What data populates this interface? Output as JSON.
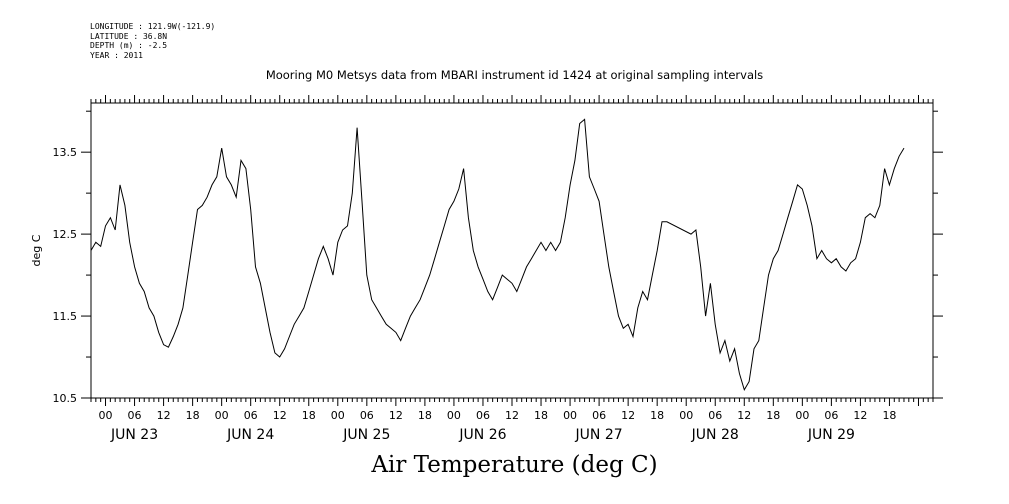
{
  "header": {
    "longitude": "LONGITUDE : 121.9W(-121.9)",
    "latitude": "LATITUDE : 36.8N",
    "depth": "DEPTH (m) : -2.5",
    "year": "YEAR : 2011",
    "title": "Mooring M0 Metsys data from MBARI instrument id 1424 at original sampling intervals",
    "variable": "Air Temperature (deg C)"
  },
  "chart_data": {
    "type": "line",
    "title": "Mooring M0 Metsys data from MBARI instrument id 1424 at original sampling intervals",
    "xlabel": "Air Temperature (deg C)",
    "ylabel": "deg C",
    "ylim": [
      10.5,
      14.1
    ],
    "xlim": [
      "2011-06-22 21:00",
      "2011-06-30 03:00"
    ],
    "y_ticks": [
      "10.5",
      "11.5",
      "12.5",
      "13.5"
    ],
    "hour_ticks": [
      "00",
      "06",
      "12",
      "18",
      "00",
      "06",
      "12",
      "18",
      "00",
      "06",
      "12",
      "18",
      "00",
      "06",
      "12",
      "18",
      "00",
      "06",
      "12",
      "18",
      "00",
      "06",
      "12",
      "18",
      "00",
      "06",
      "12",
      "18"
    ],
    "day_labels": [
      "JUN 23",
      "JUN 24",
      "JUN 25",
      "JUN 26",
      "JUN 27",
      "JUN 28",
      "JUN 29"
    ],
    "grid": false,
    "series": [
      {
        "color": "#000000",
        "points": [
          [
            "2011-06-22 21:00",
            12.3
          ],
          [
            "2011-06-22 22:00",
            12.4
          ],
          [
            "2011-06-22 23:00",
            12.35
          ],
          [
            "2011-06-23 00:00",
            12.6
          ],
          [
            "2011-06-23 01:00",
            12.7
          ],
          [
            "2011-06-23 02:00",
            12.55
          ],
          [
            "2011-06-23 03:00",
            13.1
          ],
          [
            "2011-06-23 04:00",
            12.85
          ],
          [
            "2011-06-23 05:00",
            12.4
          ],
          [
            "2011-06-23 06:00",
            12.1
          ],
          [
            "2011-06-23 07:00",
            11.9
          ],
          [
            "2011-06-23 08:00",
            11.8
          ],
          [
            "2011-06-23 09:00",
            11.6
          ],
          [
            "2011-06-23 10:00",
            11.5
          ],
          [
            "2011-06-23 11:00",
            11.3
          ],
          [
            "2011-06-23 12:00",
            11.15
          ],
          [
            "2011-06-23 13:00",
            11.12
          ],
          [
            "2011-06-23 14:00",
            11.25
          ],
          [
            "2011-06-23 15:00",
            11.4
          ],
          [
            "2011-06-23 16:00",
            11.6
          ],
          [
            "2011-06-23 17:00",
            12.0
          ],
          [
            "2011-06-23 18:00",
            12.4
          ],
          [
            "2011-06-23 19:00",
            12.8
          ],
          [
            "2011-06-23 20:00",
            12.85
          ],
          [
            "2011-06-23 21:00",
            12.95
          ],
          [
            "2011-06-23 22:00",
            13.1
          ],
          [
            "2011-06-23 23:00",
            13.2
          ],
          [
            "2011-06-24 00:00",
            13.55
          ],
          [
            "2011-06-24 01:00",
            13.2
          ],
          [
            "2011-06-24 02:00",
            13.1
          ],
          [
            "2011-06-24 03:00",
            12.95
          ],
          [
            "2011-06-24 04:00",
            13.4
          ],
          [
            "2011-06-24 05:00",
            13.3
          ],
          [
            "2011-06-24 06:00",
            12.8
          ],
          [
            "2011-06-24 07:00",
            12.1
          ],
          [
            "2011-06-24 08:00",
            11.9
          ],
          [
            "2011-06-24 09:00",
            11.6
          ],
          [
            "2011-06-24 10:00",
            11.3
          ],
          [
            "2011-06-24 11:00",
            11.05
          ],
          [
            "2011-06-24 12:00",
            11.0
          ],
          [
            "2011-06-24 13:00",
            11.1
          ],
          [
            "2011-06-24 14:00",
            11.25
          ],
          [
            "2011-06-24 15:00",
            11.4
          ],
          [
            "2011-06-24 16:00",
            11.5
          ],
          [
            "2011-06-24 17:00",
            11.6
          ],
          [
            "2011-06-24 18:00",
            11.8
          ],
          [
            "2011-06-24 19:00",
            12.0
          ],
          [
            "2011-06-24 20:00",
            12.2
          ],
          [
            "2011-06-24 21:00",
            12.35
          ],
          [
            "2011-06-24 22:00",
            12.2
          ],
          [
            "2011-06-24 23:00",
            12.0
          ],
          [
            "2011-06-25 00:00",
            12.4
          ],
          [
            "2011-06-25 01:00",
            12.55
          ],
          [
            "2011-06-25 02:00",
            12.6
          ],
          [
            "2011-06-25 03:00",
            13.0
          ],
          [
            "2011-06-25 04:00",
            13.8
          ],
          [
            "2011-06-25 05:00",
            12.9
          ],
          [
            "2011-06-25 06:00",
            12.0
          ],
          [
            "2011-06-25 07:00",
            11.7
          ],
          [
            "2011-06-25 08:00",
            11.6
          ],
          [
            "2011-06-25 09:00",
            11.5
          ],
          [
            "2011-06-25 10:00",
            11.4
          ],
          [
            "2011-06-25 11:00",
            11.35
          ],
          [
            "2011-06-25 12:00",
            11.3
          ],
          [
            "2011-06-25 13:00",
            11.2
          ],
          [
            "2011-06-25 14:00",
            11.35
          ],
          [
            "2011-06-25 15:00",
            11.5
          ],
          [
            "2011-06-25 16:00",
            11.6
          ],
          [
            "2011-06-25 17:00",
            11.7
          ],
          [
            "2011-06-25 18:00",
            11.85
          ],
          [
            "2011-06-25 19:00",
            12.0
          ],
          [
            "2011-06-25 20:00",
            12.2
          ],
          [
            "2011-06-25 21:00",
            12.4
          ],
          [
            "2011-06-25 22:00",
            12.6
          ],
          [
            "2011-06-25 23:00",
            12.8
          ],
          [
            "2011-06-26 00:00",
            12.9
          ],
          [
            "2011-06-26 01:00",
            13.05
          ],
          [
            "2011-06-26 02:00",
            13.3
          ],
          [
            "2011-06-26 03:00",
            12.7
          ],
          [
            "2011-06-26 04:00",
            12.3
          ],
          [
            "2011-06-26 05:00",
            12.1
          ],
          [
            "2011-06-26 06:00",
            11.95
          ],
          [
            "2011-06-26 07:00",
            11.8
          ],
          [
            "2011-06-26 08:00",
            11.7
          ],
          [
            "2011-06-26 09:00",
            11.85
          ],
          [
            "2011-06-26 10:00",
            12.0
          ],
          [
            "2011-06-26 11:00",
            11.95
          ],
          [
            "2011-06-26 12:00",
            11.9
          ],
          [
            "2011-06-26 13:00",
            11.8
          ],
          [
            "2011-06-26 14:00",
            11.95
          ],
          [
            "2011-06-26 15:00",
            12.1
          ],
          [
            "2011-06-26 16:00",
            12.2
          ],
          [
            "2011-06-26 17:00",
            12.3
          ],
          [
            "2011-06-26 18:00",
            12.4
          ],
          [
            "2011-06-26 19:00",
            12.3
          ],
          [
            "2011-06-26 20:00",
            12.4
          ],
          [
            "2011-06-26 21:00",
            12.3
          ],
          [
            "2011-06-26 22:00",
            12.4
          ],
          [
            "2011-06-26 23:00",
            12.7
          ],
          [
            "2011-06-27 00:00",
            13.1
          ],
          [
            "2011-06-27 01:00",
            13.4
          ],
          [
            "2011-06-27 02:00",
            13.85
          ],
          [
            "2011-06-27 03:00",
            13.9
          ],
          [
            "2011-06-27 04:00",
            13.2
          ],
          [
            "2011-06-27 05:00",
            13.05
          ],
          [
            "2011-06-27 06:00",
            12.9
          ],
          [
            "2011-06-27 07:00",
            12.5
          ],
          [
            "2011-06-27 08:00",
            12.1
          ],
          [
            "2011-06-27 09:00",
            11.8
          ],
          [
            "2011-06-27 10:00",
            11.5
          ],
          [
            "2011-06-27 11:00",
            11.35
          ],
          [
            "2011-06-27 12:00",
            11.4
          ],
          [
            "2011-06-27 13:00",
            11.25
          ],
          [
            "2011-06-27 14:00",
            11.6
          ],
          [
            "2011-06-27 15:00",
            11.8
          ],
          [
            "2011-06-27 16:00",
            11.7
          ],
          [
            "2011-06-27 17:00",
            12.0
          ],
          [
            "2011-06-27 18:00",
            12.3
          ],
          [
            "2011-06-27 19:00",
            12.65
          ],
          [
            "2011-06-27 20:00",
            12.65
          ],
          [
            "2011-06-28 01:00",
            12.5
          ],
          [
            "2011-06-28 02:00",
            12.55
          ],
          [
            "2011-06-28 03:00",
            12.1
          ],
          [
            "2011-06-28 04:00",
            11.5
          ],
          [
            "2011-06-28 05:00",
            11.9
          ],
          [
            "2011-06-28 06:00",
            11.4
          ],
          [
            "2011-06-28 07:00",
            11.05
          ],
          [
            "2011-06-28 08:00",
            11.2
          ],
          [
            "2011-06-28 09:00",
            10.95
          ],
          [
            "2011-06-28 10:00",
            11.1
          ],
          [
            "2011-06-28 11:00",
            10.8
          ],
          [
            "2011-06-28 12:00",
            10.6
          ],
          [
            "2011-06-28 13:00",
            10.7
          ],
          [
            "2011-06-28 14:00",
            11.1
          ],
          [
            "2011-06-28 15:00",
            11.2
          ],
          [
            "2011-06-28 16:00",
            11.6
          ],
          [
            "2011-06-28 17:00",
            12.0
          ],
          [
            "2011-06-28 18:00",
            12.2
          ],
          [
            "2011-06-28 19:00",
            12.3
          ],
          [
            "2011-06-28 20:00",
            12.5
          ],
          [
            "2011-06-28 21:00",
            12.7
          ],
          [
            "2011-06-28 22:00",
            12.9
          ],
          [
            "2011-06-28 23:00",
            13.1
          ],
          [
            "2011-06-29 00:00",
            13.05
          ],
          [
            "2011-06-29 01:00",
            12.85
          ],
          [
            "2011-06-29 02:00",
            12.6
          ],
          [
            "2011-06-29 03:00",
            12.2
          ],
          [
            "2011-06-29 04:00",
            12.3
          ],
          [
            "2011-06-29 05:00",
            12.2
          ],
          [
            "2011-06-29 06:00",
            12.15
          ],
          [
            "2011-06-29 07:00",
            12.2
          ],
          [
            "2011-06-29 08:00",
            12.1
          ],
          [
            "2011-06-29 09:00",
            12.05
          ],
          [
            "2011-06-29 10:00",
            12.15
          ],
          [
            "2011-06-29 11:00",
            12.2
          ],
          [
            "2011-06-29 12:00",
            12.4
          ],
          [
            "2011-06-29 13:00",
            12.7
          ],
          [
            "2011-06-29 14:00",
            12.75
          ],
          [
            "2011-06-29 15:00",
            12.7
          ],
          [
            "2011-06-29 16:00",
            12.85
          ],
          [
            "2011-06-29 17:00",
            13.3
          ],
          [
            "2011-06-29 18:00",
            13.1
          ],
          [
            "2011-06-29 19:00",
            13.3
          ],
          [
            "2011-06-29 20:00",
            13.45
          ],
          [
            "2011-06-29 21:00",
            13.55
          ]
        ]
      }
    ]
  }
}
